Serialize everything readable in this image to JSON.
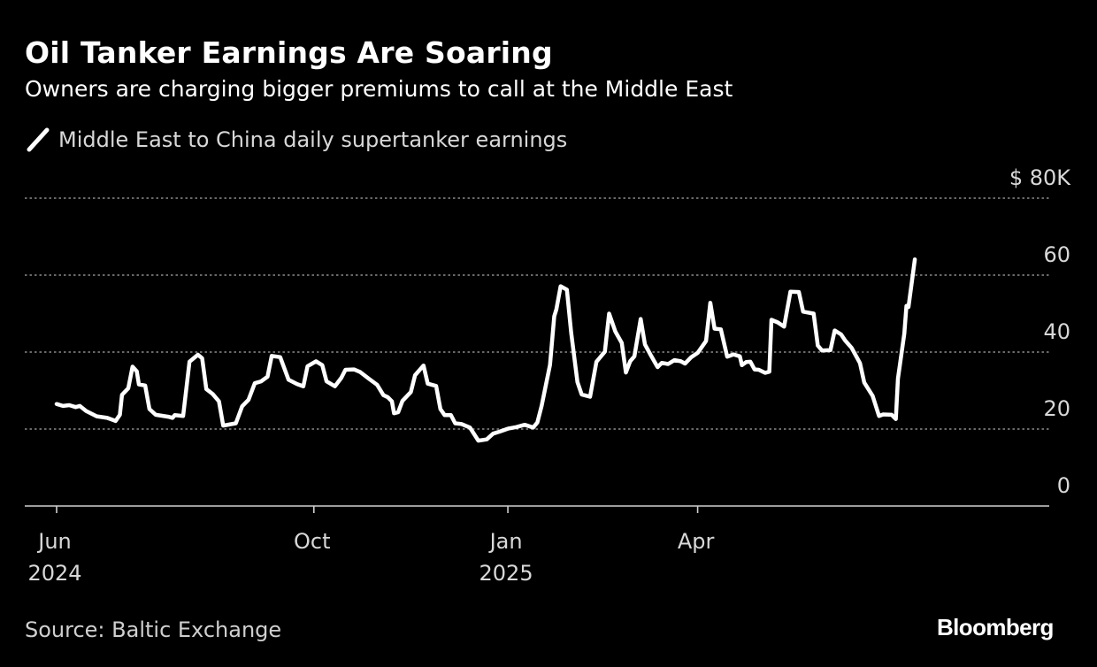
{
  "header": {
    "title": "Oil Tanker Earnings Are Soaring",
    "subtitle": "Owners are charging bigger premiums to call at the Middle East"
  },
  "footer": {
    "source": "Source: Baltic Exchange",
    "brand": "Bloomberg"
  },
  "colors": {
    "background": "#000000",
    "line": "#ffffff",
    "grid": "#8a8a8a",
    "text_secondary": "#d8d8d8"
  },
  "chart_data": {
    "type": "line",
    "title": "Oil Tanker Earnings Are Soaring",
    "subtitle": "Owners are charging bigger premiums to call at the Middle East",
    "xlabel": "",
    "ylabel": "",
    "y_unit_label": "$ 80K",
    "ylim": [
      0,
      80
    ],
    "yticks": [
      0,
      20,
      40,
      60,
      80
    ],
    "ytick_labels": [
      "0",
      "20",
      "40",
      "60",
      "$ 80K"
    ],
    "grid": "horizontal dotted",
    "legend": "top-left",
    "xlim": [
      "2024-05-27",
      "2025-06-26"
    ],
    "xticks": [
      {
        "date": "2024-06-01",
        "label": "Jun",
        "year": "2024"
      },
      {
        "date": "2024-10-01",
        "label": "Oct",
        "year": ""
      },
      {
        "date": "2025-01-01",
        "label": "Jan",
        "year": "2025"
      },
      {
        "date": "2025-04-01",
        "label": "Apr",
        "year": ""
      }
    ],
    "series": [
      {
        "name": "Middle East to China daily supertanker earnings",
        "points": [
          [
            "2024-06-01",
            26.5
          ],
          [
            "2024-06-04",
            26.0
          ],
          [
            "2024-06-07",
            26.2
          ],
          [
            "2024-06-10",
            25.7
          ],
          [
            "2024-06-12",
            26.0
          ],
          [
            "2024-06-15",
            24.7
          ],
          [
            "2024-06-20",
            23.3
          ],
          [
            "2024-06-25",
            22.9
          ],
          [
            "2024-06-29",
            22.1
          ],
          [
            "2024-07-01",
            23.7
          ],
          [
            "2024-07-02",
            28.9
          ],
          [
            "2024-07-05",
            30.6
          ],
          [
            "2024-07-07",
            36.2
          ],
          [
            "2024-07-09",
            35.0
          ],
          [
            "2024-07-10",
            31.6
          ],
          [
            "2024-07-13",
            31.3
          ],
          [
            "2024-07-15",
            25.2
          ],
          [
            "2024-07-18",
            23.7
          ],
          [
            "2024-07-24",
            23.2
          ],
          [
            "2024-07-26",
            22.9
          ],
          [
            "2024-07-27",
            23.6
          ],
          [
            "2024-07-31",
            23.4
          ],
          [
            "2024-08-03",
            37.5
          ],
          [
            "2024-08-07",
            39.3
          ],
          [
            "2024-08-09",
            38.4
          ],
          [
            "2024-08-11",
            30.4
          ],
          [
            "2024-08-14",
            29.1
          ],
          [
            "2024-08-17",
            27.2
          ],
          [
            "2024-08-19",
            20.9
          ],
          [
            "2024-08-25",
            21.5
          ],
          [
            "2024-08-28",
            25.9
          ],
          [
            "2024-08-31",
            27.6
          ],
          [
            "2024-09-03",
            31.9
          ],
          [
            "2024-09-06",
            32.4
          ],
          [
            "2024-09-09",
            33.6
          ],
          [
            "2024-09-11",
            39.0
          ],
          [
            "2024-09-15",
            38.7
          ],
          [
            "2024-09-19",
            32.8
          ],
          [
            "2024-09-23",
            31.7
          ],
          [
            "2024-09-26",
            31.1
          ],
          [
            "2024-09-28",
            36.3
          ],
          [
            "2024-10-02",
            37.6
          ],
          [
            "2024-10-05",
            36.6
          ],
          [
            "2024-10-07",
            32.4
          ],
          [
            "2024-10-11",
            31.1
          ],
          [
            "2024-10-14",
            33.3
          ],
          [
            "2024-10-16",
            35.4
          ],
          [
            "2024-10-20",
            35.5
          ],
          [
            "2024-10-23",
            34.8
          ],
          [
            "2024-10-27",
            33.1
          ],
          [
            "2024-10-31",
            31.5
          ],
          [
            "2024-11-03",
            28.8
          ],
          [
            "2024-11-05",
            28.3
          ],
          [
            "2024-11-07",
            27.2
          ],
          [
            "2024-11-08",
            24.1
          ],
          [
            "2024-11-10",
            24.4
          ],
          [
            "2024-11-12",
            27.3
          ],
          [
            "2024-11-16",
            29.6
          ],
          [
            "2024-11-18",
            34.0
          ],
          [
            "2024-11-22",
            36.5
          ],
          [
            "2024-11-24",
            31.8
          ],
          [
            "2024-11-28",
            31.2
          ],
          [
            "2024-11-30",
            25.2
          ],
          [
            "2024-12-02",
            23.6
          ],
          [
            "2024-12-05",
            23.6
          ],
          [
            "2024-12-07",
            21.5
          ],
          [
            "2024-12-10",
            21.3
          ],
          [
            "2024-12-14",
            20.4
          ],
          [
            "2024-12-18",
            17.0
          ],
          [
            "2024-12-22",
            17.3
          ],
          [
            "2024-12-25",
            18.8
          ],
          [
            "2024-12-28",
            19.3
          ],
          [
            "2025-01-01",
            20.1
          ],
          [
            "2025-01-05",
            20.5
          ],
          [
            "2025-01-09",
            21.1
          ],
          [
            "2025-01-13",
            20.4
          ],
          [
            "2025-01-15",
            21.7
          ],
          [
            "2025-01-17",
            26.0
          ],
          [
            "2025-01-21",
            36.7
          ],
          [
            "2025-01-23",
            49.3
          ],
          [
            "2025-01-24",
            51.1
          ],
          [
            "2025-01-26",
            57.1
          ],
          [
            "2025-01-29",
            56.2
          ],
          [
            "2025-01-31",
            45.1
          ],
          [
            "2025-02-03",
            32.2
          ],
          [
            "2025-02-05",
            29.0
          ],
          [
            "2025-02-09",
            28.4
          ],
          [
            "2025-02-12",
            37.5
          ],
          [
            "2025-02-16",
            40.1
          ],
          [
            "2025-02-18",
            50.0
          ],
          [
            "2025-02-21",
            45.3
          ],
          [
            "2025-02-24",
            42.4
          ],
          [
            "2025-02-26",
            34.7
          ],
          [
            "2025-02-28",
            37.6
          ],
          [
            "2025-03-02",
            38.9
          ],
          [
            "2025-03-05",
            48.6
          ],
          [
            "2025-03-07",
            42.0
          ],
          [
            "2025-03-10",
            39.0
          ],
          [
            "2025-03-13",
            36.1
          ],
          [
            "2025-03-15",
            37.2
          ],
          [
            "2025-03-18",
            36.9
          ],
          [
            "2025-03-21",
            37.9
          ],
          [
            "2025-03-24",
            37.6
          ],
          [
            "2025-03-26",
            37.0
          ],
          [
            "2025-03-29",
            38.7
          ],
          [
            "2025-04-01",
            39.8
          ],
          [
            "2025-04-05",
            42.9
          ],
          [
            "2025-04-07",
            52.8
          ],
          [
            "2025-04-09",
            46.1
          ],
          [
            "2025-04-12",
            45.9
          ],
          [
            "2025-04-15",
            38.8
          ],
          [
            "2025-04-18",
            39.4
          ],
          [
            "2025-04-21",
            38.9
          ],
          [
            "2025-04-22",
            36.6
          ],
          [
            "2025-04-24",
            37.4
          ],
          [
            "2025-04-26",
            37.5
          ],
          [
            "2025-04-28",
            35.5
          ],
          [
            "2025-04-30",
            35.4
          ],
          [
            "2025-05-03",
            34.6
          ],
          [
            "2025-05-05",
            34.9
          ],
          [
            "2025-05-06",
            48.4
          ],
          [
            "2025-05-09",
            47.7
          ],
          [
            "2025-05-12",
            46.6
          ],
          [
            "2025-05-15",
            55.7
          ],
          [
            "2025-05-19",
            55.6
          ],
          [
            "2025-05-21",
            50.5
          ],
          [
            "2025-05-23",
            50.3
          ],
          [
            "2025-05-26",
            50.0
          ],
          [
            "2025-05-28",
            41.7
          ],
          [
            "2025-05-30",
            40.4
          ],
          [
            "2025-06-03",
            40.5
          ],
          [
            "2025-06-05",
            45.6
          ],
          [
            "2025-06-08",
            44.6
          ],
          [
            "2025-06-10",
            43.0
          ],
          [
            "2025-06-13",
            41.1
          ],
          [
            "2025-06-17",
            37.1
          ],
          [
            "2025-06-19",
            32.1
          ],
          [
            "2025-06-23",
            28.6
          ],
          [
            "2025-06-26",
            23.4
          ],
          [
            "2025-06-28",
            23.8
          ],
          [
            "2025-07-02",
            23.7
          ],
          [
            "2025-07-04",
            22.6
          ],
          [
            "2025-07-05",
            33.1
          ],
          [
            "2025-07-08",
            44.8
          ],
          [
            "2025-07-09",
            52.0
          ],
          [
            "2025-07-10",
            51.7
          ],
          [
            "2025-07-13",
            64.1
          ]
        ]
      }
    ]
  }
}
